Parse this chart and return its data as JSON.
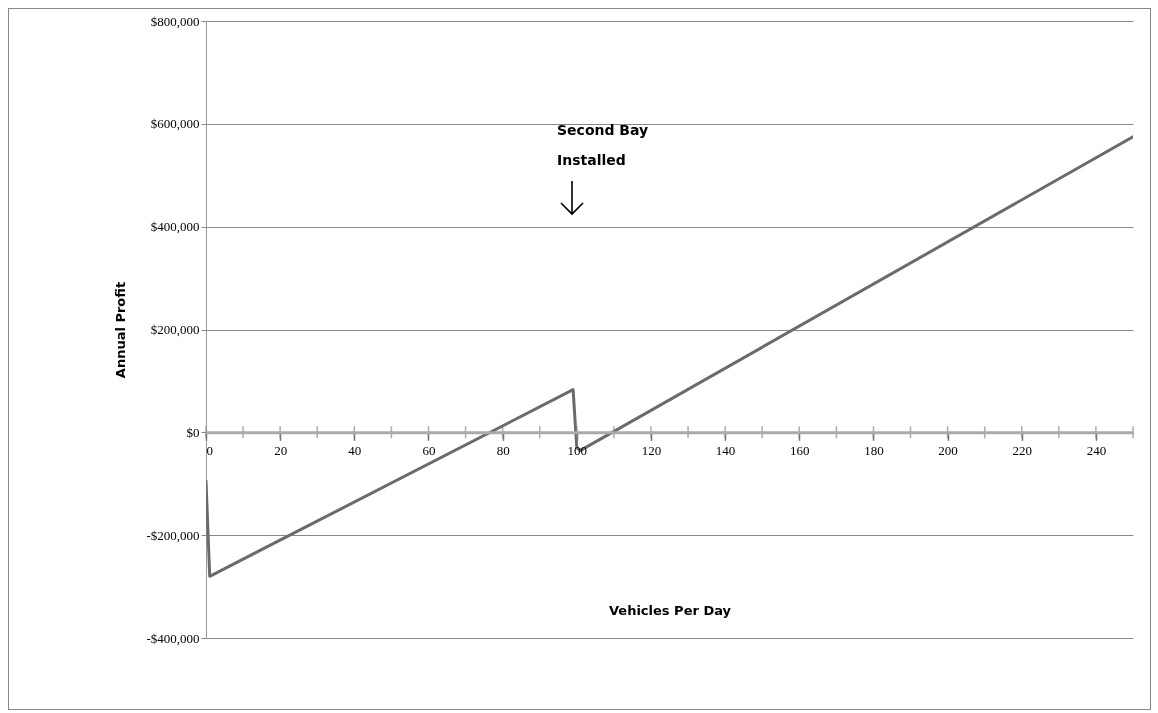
{
  "chart_data": {
    "type": "line",
    "xlabel": "Vehicles Per Day",
    "ylabel": "Annual Profit",
    "x": [
      0,
      1,
      99,
      100,
      101,
      250
    ],
    "series": [
      {
        "color": "#6b6b6b",
        "values": [
          -95000,
          -280000,
          83000,
          -30000,
          -35000,
          575000
        ]
      }
    ],
    "xlim": [
      0,
      250
    ],
    "xticks": [
      0,
      {
        "value": 10,
        "label": null
      },
      20,
      {
        "value": 30,
        "label": null
      },
      40,
      {
        "value": 50,
        "label": null
      },
      60,
      {
        "value": 70,
        "label": null
      },
      80,
      {
        "value": 90,
        "label": null
      },
      100,
      {
        "value": 110,
        "label": null
      },
      120,
      {
        "value": 130,
        "label": null
      },
      140,
      {
        "value": 150,
        "label": null
      },
      160,
      {
        "value": 170,
        "label": null
      },
      180,
      {
        "value": 190,
        "label": null
      },
      200,
      {
        "value": 210,
        "label": null
      },
      220,
      {
        "value": 230,
        "label": null
      },
      240,
      {
        "value": 250,
        "label": null
      }
    ],
    "ylim": [
      -400000,
      800000
    ],
    "yticks": [
      {
        "value": -400000,
        "label": "-$400,000"
      },
      {
        "value": -200000,
        "label": "-$200,000"
      },
      {
        "value": 0,
        "label": "$0"
      },
      {
        "value": 200000,
        "label": "$200,000"
      },
      {
        "value": 400000,
        "label": "$400,000"
      },
      {
        "value": 600000,
        "label": "$600,000"
      },
      {
        "value": 800000,
        "label": "$800,000"
      }
    ],
    "grid": "y",
    "marker": "none",
    "line_style": "solid",
    "annotations": [
      "Second Bay\nInstalled"
    ]
  }
}
